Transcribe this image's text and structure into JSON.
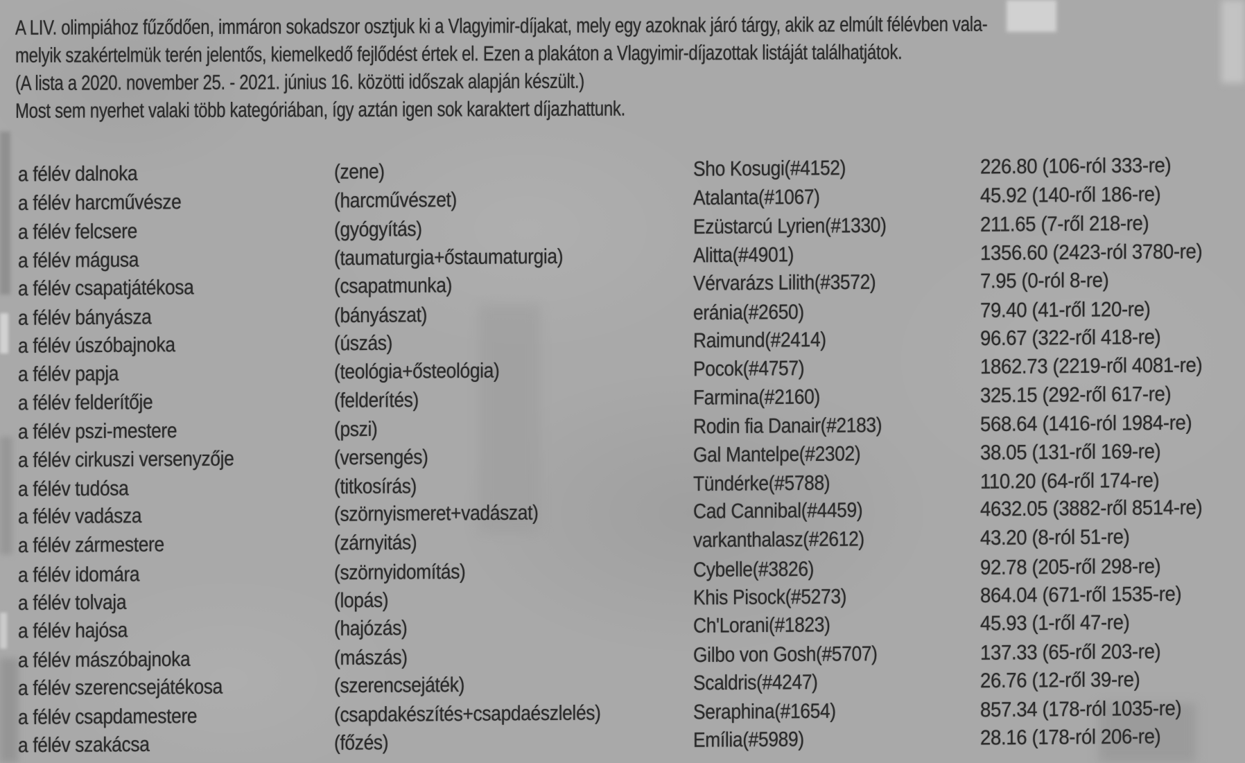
{
  "page": {
    "background_color": "#a9a9a9",
    "text_color": "#2b2b2b"
  },
  "intro": {
    "lines": [
      "A LIV. olimpiához fűződően, immáron sokadszor osztjuk ki a Vlagyimir-díjakat, mely egy azoknak járó tárgy, akik az elmúlt félévben vala-",
      "melyik szakértelmük terén jelentős, kiemelkedő fejlődést értek el. Ezen a plakáton a Vlagyimir-díjazottak listáját találhatjátok.",
      "(A lista a 2020. november 25. - 2021. június 16. közötti időszak alapján készült.)",
      "Most sem nyerhet valaki több kategóriában, így aztán igen sok karaktert díjazhattunk."
    ]
  },
  "awards": {
    "rows": [
      {
        "category": "a félév dalnoka",
        "skill": "(zene)",
        "recipient": "Sho Kosugi(#4152)",
        "score": "226.80 (106-ról 333-re)"
      },
      {
        "category": "a félév harcművésze",
        "skill": "(harcművészet)",
        "recipient": "Atalanta(#1067)",
        "score": "45.92 (140-ről 186-re)"
      },
      {
        "category": "a félév felcsere",
        "skill": "(gyógyítás)",
        "recipient": "Ezüstarcú Lyrien(#1330)",
        "score": "211.65 (7-ről 218-re)"
      },
      {
        "category": "a félév mágusa",
        "skill": "(taumaturgia+őstaumaturgia)",
        "recipient": "Alitta(#4901)",
        "score": "1356.60 (2423-ról 3780-re)"
      },
      {
        "category": "a félév csapatjátékosa",
        "skill": "(csapatmunka)",
        "recipient": "Vérvarázs Lilith(#3572)",
        "score": "7.95 (0-ról 8-re)"
      },
      {
        "category": "a félév bányásza",
        "skill": "(bányászat)",
        "recipient": "eránia(#2650)",
        "score": "79.40 (41-ről 120-re)"
      },
      {
        "category": "a félév úszóbajnoka",
        "skill": "(úszás)",
        "recipient": "Raimund(#2414)",
        "score": "96.67 (322-ről 418-re)"
      },
      {
        "category": "a félév papja",
        "skill": "(teológia+ősteológia)",
        "recipient": "Pocok(#4757)",
        "score": "1862.73 (2219-ről 4081-re)"
      },
      {
        "category": "a félév felderítője",
        "skill": "(felderítés)",
        "recipient": "Farmina(#2160)",
        "score": "325.15 (292-ről 617-re)"
      },
      {
        "category": "a félév pszi-mestere",
        "skill": "(pszi)",
        "recipient": "Rodin fia Danair(#2183)",
        "score": "568.64 (1416-ról 1984-re)"
      },
      {
        "category": "a félév cirkuszi versenyzője",
        "skill": "(versengés)",
        "recipient": "Gal Mantelpe(#2302)",
        "score": "38.05 (131-ről 169-re)"
      },
      {
        "category": "a félév tudósa",
        "skill": "(titkosírás)",
        "recipient": "Tündérke(#5788)",
        "score": "110.20 (64-ről 174-re)"
      },
      {
        "category": "a félév vadásza",
        "skill": "(szörnyismeret+vadászat)",
        "recipient": "Cad Cannibal(#4459)",
        "score": "4632.05 (3882-ről 8514-re)"
      },
      {
        "category": "a félév zármestere",
        "skill": "(zárnyitás)",
        "recipient": "varkanthalasz(#2612)",
        "score": "43.20 (8-ról 51-re)"
      },
      {
        "category": "a félév idomára",
        "skill": "(szörnyidomítás)",
        "recipient": "Cybelle(#3826)",
        "score": "92.78 (205-ről 298-re)"
      },
      {
        "category": "a félév tolvaja",
        "skill": "(lopás)",
        "recipient": "Khis Pisock(#5273)",
        "score": "864.04 (671-ről 1535-re)"
      },
      {
        "category": "a félév hajósa",
        "skill": "(hajózás)",
        "recipient": "Ch'Lorani(#1823)",
        "score": "45.93 (1-ről 47-re)"
      },
      {
        "category": "a félév mászóbajnoka",
        "skill": "(mászás)",
        "recipient": "Gilbo von Gosh(#5707)",
        "score": "137.33 (65-ről 203-re)"
      },
      {
        "category": "a félév szerencsejátékosa",
        "skill": "(szerencsejáték)",
        "recipient": "Scaldris(#4247)",
        "score": "26.76 (12-ről 39-re)"
      },
      {
        "category": "a félév csapdamestere",
        "skill": "(csapdakészítés+csapdaészlelés)",
        "recipient": "Seraphina(#1654)",
        "score": "857.34 (178-ról 1035-re)"
      },
      {
        "category": "a félév szakácsa",
        "skill": "(főzés)",
        "recipient": "Emília(#5989)",
        "score": "28.16 (178-ról 206-re)"
      }
    ]
  }
}
